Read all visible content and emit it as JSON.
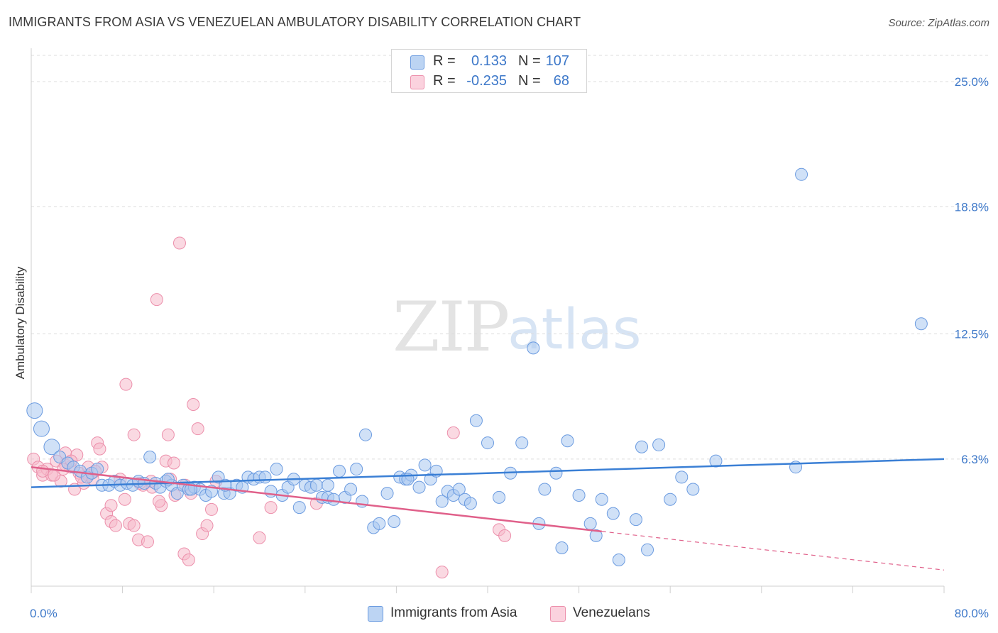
{
  "header": {
    "title": "IMMIGRANTS FROM ASIA VS VENEZUELAN AMBULATORY DISABILITY CORRELATION CHART",
    "source": "Source: ZipAtlas.com"
  },
  "watermark": {
    "zip": "ZIP",
    "atlas": "atlas"
  },
  "legend": {
    "rows": [
      {
        "r_label": "R =",
        "r_value": "0.133",
        "n_label": "N =",
        "n_value": "107",
        "color": "#a9c8f0"
      },
      {
        "r_label": "R =",
        "r_value": "-0.235",
        "n_label": "N =",
        "n_value": "68",
        "color": "#f6b9cb"
      }
    ]
  },
  "bottom_legend": {
    "items": [
      {
        "label": "Immigrants from Asia",
        "color": "#a9c8f0"
      },
      {
        "label": "Venezuelans",
        "color": "#f6b9cb"
      }
    ]
  },
  "chart_data": {
    "type": "scatter",
    "title": "IMMIGRANTS FROM ASIA VS VENEZUELAN AMBULATORY DISABILITY CORRELATION CHART",
    "xlabel": "",
    "ylabel": "Ambulatory Disability",
    "xlim": [
      0,
      80
    ],
    "ylim": [
      0,
      26.3
    ],
    "x_tick_labels": [
      "0.0%",
      "80.0%"
    ],
    "y_ticks": [
      6.3,
      12.5,
      18.8,
      25.0
    ],
    "y_tick_labels": [
      "6.3%",
      "12.5%",
      "18.8%",
      "25.0%"
    ],
    "grid": true,
    "legend_position": "top-center",
    "colors": {
      "asia": "#3a7fd5",
      "asia_fill": "#a9c8f0",
      "ven": "#e0608a",
      "ven_fill": "#f6b9cb"
    },
    "series": [
      {
        "name": "Immigrants from Asia",
        "trend": {
          "x": [
            0,
            80
          ],
          "y": [
            4.9,
            6.3
          ],
          "dashed_from": null
        },
        "points": [
          [
            0.3,
            8.7
          ],
          [
            0.9,
            7.8
          ],
          [
            1.8,
            6.9
          ],
          [
            2.5,
            6.4
          ],
          [
            3.2,
            6.1
          ],
          [
            3.7,
            5.9
          ],
          [
            4.3,
            5.7
          ],
          [
            4.9,
            5.4
          ],
          [
            5.3,
            5.6
          ],
          [
            5.8,
            5.8
          ],
          [
            6.2,
            5.0
          ],
          [
            6.8,
            5.0
          ],
          [
            7.3,
            5.2
          ],
          [
            7.8,
            5.0
          ],
          [
            8.4,
            5.1
          ],
          [
            8.9,
            5.0
          ],
          [
            9.4,
            5.2
          ],
          [
            9.9,
            5.1
          ],
          [
            10.4,
            6.4
          ],
          [
            10.9,
            5.1
          ],
          [
            11.3,
            4.9
          ],
          [
            11.8,
            5.2
          ],
          [
            12.3,
            5.0
          ],
          [
            12.8,
            4.6
          ],
          [
            13.3,
            5.0
          ],
          [
            13.8,
            4.8
          ],
          [
            14.3,
            4.9
          ],
          [
            14.8,
            4.8
          ],
          [
            15.3,
            4.5
          ],
          [
            15.8,
            4.7
          ],
          [
            16.4,
            5.4
          ],
          [
            16.9,
            4.6
          ],
          [
            17.4,
            4.6
          ],
          [
            18.0,
            5.0
          ],
          [
            18.5,
            4.9
          ],
          [
            19.0,
            5.4
          ],
          [
            19.5,
            5.3
          ],
          [
            20.0,
            5.4
          ],
          [
            20.5,
            5.4
          ],
          [
            21.0,
            4.7
          ],
          [
            21.5,
            5.8
          ],
          [
            22.0,
            4.5
          ],
          [
            22.5,
            4.9
          ],
          [
            23.0,
            5.3
          ],
          [
            23.5,
            3.9
          ],
          [
            24.0,
            5.0
          ],
          [
            24.5,
            4.9
          ],
          [
            25.0,
            5.0
          ],
          [
            25.5,
            4.4
          ],
          [
            26.0,
            4.4
          ],
          [
            26.5,
            4.3
          ],
          [
            27.0,
            5.7
          ],
          [
            27.5,
            4.4
          ],
          [
            28.0,
            4.8
          ],
          [
            28.5,
            5.8
          ],
          [
            29.0,
            4.2
          ],
          [
            29.3,
            7.5
          ],
          [
            30.0,
            2.9
          ],
          [
            30.5,
            3.1
          ],
          [
            31.2,
            4.6
          ],
          [
            31.8,
            3.2
          ],
          [
            32.3,
            5.4
          ],
          [
            32.8,
            5.3
          ],
          [
            33.3,
            5.5
          ],
          [
            34.0,
            4.9
          ],
          [
            34.5,
            6.0
          ],
          [
            35.0,
            5.3
          ],
          [
            35.5,
            5.7
          ],
          [
            36.0,
            4.2
          ],
          [
            36.5,
            4.7
          ],
          [
            37.0,
            4.5
          ],
          [
            37.5,
            4.8
          ],
          [
            38.0,
            4.3
          ],
          [
            38.5,
            4.1
          ],
          [
            39.0,
            8.2
          ],
          [
            40.0,
            7.1
          ],
          [
            41.0,
            4.4
          ],
          [
            42.0,
            5.6
          ],
          [
            43.0,
            7.1
          ],
          [
            44.0,
            11.8
          ],
          [
            44.5,
            3.1
          ],
          [
            45.0,
            4.8
          ],
          [
            46.0,
            5.6
          ],
          [
            46.5,
            1.9
          ],
          [
            47.0,
            7.2
          ],
          [
            48.0,
            4.5
          ],
          [
            49.0,
            3.1
          ],
          [
            49.5,
            2.5
          ],
          [
            50.0,
            4.3
          ],
          [
            51.0,
            3.6
          ],
          [
            51.5,
            1.3
          ],
          [
            53.0,
            3.3
          ],
          [
            53.5,
            6.9
          ],
          [
            54.0,
            1.8
          ],
          [
            55.0,
            7.0
          ],
          [
            56.0,
            4.3
          ],
          [
            57.0,
            5.4
          ],
          [
            58.0,
            4.8
          ],
          [
            60.0,
            6.2
          ],
          [
            67.0,
            5.9
          ],
          [
            67.5,
            20.4
          ],
          [
            78.0,
            13.0
          ],
          [
            12.0,
            5.3
          ],
          [
            17.0,
            5.0
          ],
          [
            26.0,
            5.0
          ],
          [
            33.0,
            5.3
          ],
          [
            14.0,
            4.8
          ]
        ]
      },
      {
        "name": "Venezuelans",
        "trend": {
          "x": [
            0,
            80
          ],
          "y": [
            5.9,
            0.8
          ],
          "solid_until": 50
        },
        "points": [
          [
            0.2,
            6.3
          ],
          [
            0.6,
            5.9
          ],
          [
            1.0,
            5.5
          ],
          [
            1.4,
            5.8
          ],
          [
            1.8,
            5.5
          ],
          [
            2.2,
            6.2
          ],
          [
            2.6,
            5.2
          ],
          [
            3.0,
            6.6
          ],
          [
            3.4,
            5.9
          ],
          [
            3.8,
            4.8
          ],
          [
            4.2,
            5.6
          ],
          [
            4.6,
            5.1
          ],
          [
            5.0,
            5.5
          ],
          [
            5.4,
            5.3
          ],
          [
            5.8,
            7.1
          ],
          [
            6.2,
            5.9
          ],
          [
            6.6,
            3.6
          ],
          [
            7.0,
            3.2
          ],
          [
            7.4,
            3.0
          ],
          [
            7.8,
            5.3
          ],
          [
            8.2,
            4.3
          ],
          [
            8.6,
            3.1
          ],
          [
            9.0,
            3.0
          ],
          [
            9.4,
            2.3
          ],
          [
            9.8,
            5.0
          ],
          [
            10.2,
            2.2
          ],
          [
            10.6,
            4.9
          ],
          [
            11.0,
            14.2
          ],
          [
            11.4,
            4.0
          ],
          [
            11.8,
            6.2
          ],
          [
            12.2,
            5.3
          ],
          [
            12.6,
            4.5
          ],
          [
            13.0,
            17.0
          ],
          [
            13.4,
            1.6
          ],
          [
            13.8,
            1.3
          ],
          [
            14.2,
            9.0
          ],
          [
            14.6,
            7.8
          ],
          [
            15.0,
            2.6
          ],
          [
            15.4,
            3.0
          ],
          [
            15.8,
            3.8
          ],
          [
            16.2,
            5.2
          ],
          [
            8.3,
            10.0
          ],
          [
            9.0,
            7.5
          ],
          [
            12.0,
            7.5
          ],
          [
            6.0,
            6.8
          ],
          [
            5.0,
            5.9
          ],
          [
            4.0,
            6.5
          ],
          [
            3.0,
            6.0
          ],
          [
            2.0,
            5.5
          ],
          [
            1.0,
            5.7
          ],
          [
            20.0,
            2.4
          ],
          [
            21.0,
            3.9
          ],
          [
            25.0,
            4.1
          ],
          [
            36.0,
            0.7
          ],
          [
            37.0,
            7.6
          ],
          [
            41.0,
            2.8
          ],
          [
            41.5,
            2.5
          ],
          [
            7.0,
            4.0
          ],
          [
            9.5,
            5.1
          ],
          [
            10.5,
            5.2
          ],
          [
            11.2,
            4.2
          ],
          [
            12.5,
            6.1
          ],
          [
            13.5,
            5.0
          ],
          [
            14.0,
            4.6
          ],
          [
            3.5,
            6.2
          ],
          [
            2.8,
            5.8
          ],
          [
            4.4,
            5.4
          ],
          [
            5.6,
            5.7
          ]
        ]
      }
    ]
  }
}
